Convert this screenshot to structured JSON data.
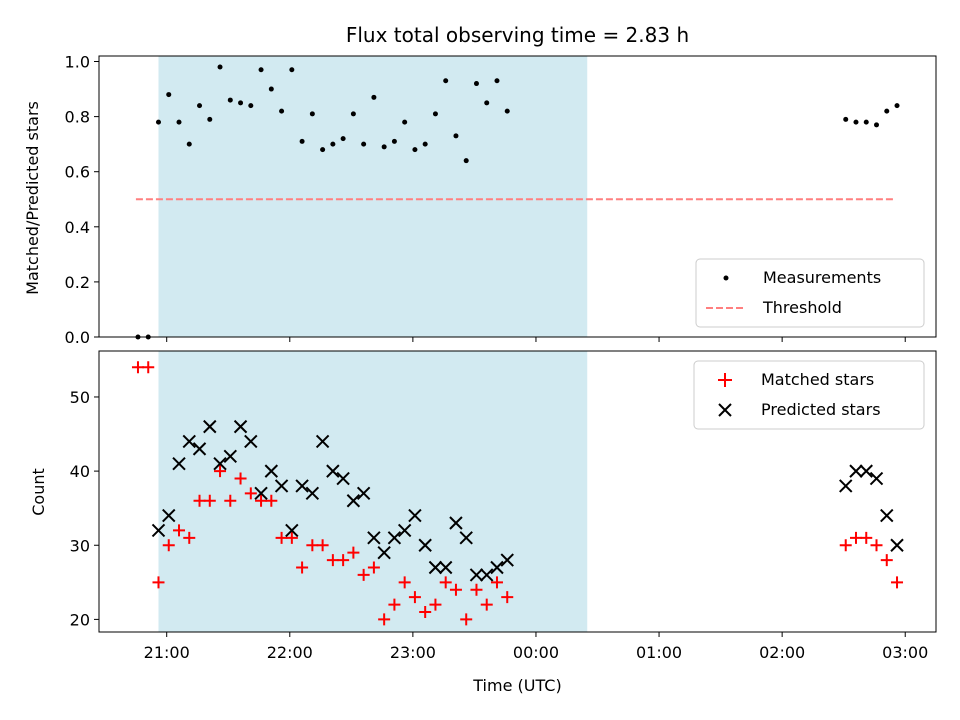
{
  "chart_data": [
    {
      "type": "scatter",
      "title": "Flux total observing time = 2.83 h",
      "xlabel": "",
      "ylabel": "Matched/Predicted stars",
      "xlim": [
        "20:27",
        "03:15"
      ],
      "ylim": [
        0.0,
        1.02
      ],
      "xticks": [
        "21:00",
        "22:00",
        "23:00",
        "00:00",
        "01:00",
        "02:00",
        "03:00"
      ],
      "yticks": [
        "0.0",
        "0.2",
        "0.4",
        "0.6",
        "0.8",
        "1.0"
      ],
      "shaded_interval": [
        "20:56",
        "00:25"
      ],
      "legend": {
        "position": "lower-right",
        "items": [
          "Measurements",
          "Threshold"
        ]
      },
      "threshold": {
        "name": "Threshold",
        "y": 0.5,
        "x_start": "20:45",
        "x_end": "02:55",
        "color": "#ff7f7f"
      },
      "series": [
        {
          "name": "Measurements",
          "color": "#000000",
          "points": [
            [
              "20:46",
              0.0
            ],
            [
              "20:51",
              0.0
            ],
            [
              "20:56",
              0.78
            ],
            [
              "21:01",
              0.88
            ],
            [
              "21:06",
              0.78
            ],
            [
              "21:11",
              0.7
            ],
            [
              "21:16",
              0.84
            ],
            [
              "21:21",
              0.79
            ],
            [
              "21:26",
              0.98
            ],
            [
              "21:31",
              0.86
            ],
            [
              "21:36",
              0.85
            ],
            [
              "21:41",
              0.84
            ],
            [
              "21:46",
              0.97
            ],
            [
              "21:51",
              0.9
            ],
            [
              "21:56",
              0.82
            ],
            [
              "22:01",
              0.97
            ],
            [
              "22:06",
              0.71
            ],
            [
              "22:11",
              0.81
            ],
            [
              "22:16",
              0.68
            ],
            [
              "22:21",
              0.7
            ],
            [
              "22:26",
              0.72
            ],
            [
              "22:31",
              0.81
            ],
            [
              "22:36",
              0.7
            ],
            [
              "22:41",
              0.87
            ],
            [
              "22:46",
              0.69
            ],
            [
              "22:51",
              0.71
            ],
            [
              "22:56",
              0.78
            ],
            [
              "23:01",
              0.68
            ],
            [
              "23:06",
              0.7
            ],
            [
              "23:11",
              0.81
            ],
            [
              "23:16",
              0.93
            ],
            [
              "23:21",
              0.73
            ],
            [
              "23:26",
              0.64
            ],
            [
              "23:31",
              0.92
            ],
            [
              "23:36",
              0.85
            ],
            [
              "23:41",
              0.93
            ],
            [
              "23:46",
              0.82
            ],
            [
              "02:31",
              0.79
            ],
            [
              "02:36",
              0.78
            ],
            [
              "02:41",
              0.78
            ],
            [
              "02:46",
              0.77
            ],
            [
              "02:51",
              0.82
            ],
            [
              "02:56",
              0.84
            ]
          ]
        }
      ]
    },
    {
      "type": "scatter",
      "title": "",
      "xlabel": "Time (UTC)",
      "ylabel": "Count",
      "xlim": [
        "20:27",
        "03:15"
      ],
      "ylim": [
        18.3,
        56.2
      ],
      "xticks": [
        "21:00",
        "22:00",
        "23:00",
        "00:00",
        "01:00",
        "02:00",
        "03:00"
      ],
      "yticks": [
        "20",
        "30",
        "40",
        "50"
      ],
      "shaded_interval": [
        "20:56",
        "00:25"
      ],
      "legend": {
        "position": "upper-right",
        "items": [
          "Matched stars",
          "Predicted stars"
        ]
      },
      "series": [
        {
          "name": "Matched stars",
          "color": "#ff0000",
          "marker": "plus",
          "points": [
            [
              "20:46",
              54
            ],
            [
              "20:51",
              54
            ],
            [
              "20:56",
              25
            ],
            [
              "21:01",
              30
            ],
            [
              "21:06",
              32
            ],
            [
              "21:11",
              31
            ],
            [
              "21:16",
              36
            ],
            [
              "21:21",
              36
            ],
            [
              "21:26",
              40
            ],
            [
              "21:31",
              36
            ],
            [
              "21:36",
              39
            ],
            [
              "21:41",
              37
            ],
            [
              "21:46",
              36
            ],
            [
              "21:51",
              36
            ],
            [
              "21:56",
              31
            ],
            [
              "22:01",
              31
            ],
            [
              "22:06",
              27
            ],
            [
              "22:11",
              30
            ],
            [
              "22:16",
              30
            ],
            [
              "22:21",
              28
            ],
            [
              "22:26",
              28
            ],
            [
              "22:31",
              29
            ],
            [
              "22:36",
              26
            ],
            [
              "22:41",
              27
            ],
            [
              "22:46",
              20
            ],
            [
              "22:51",
              22
            ],
            [
              "22:56",
              25
            ],
            [
              "23:01",
              23
            ],
            [
              "23:06",
              21
            ],
            [
              "23:11",
              22
            ],
            [
              "23:16",
              25
            ],
            [
              "23:21",
              24
            ],
            [
              "23:26",
              20
            ],
            [
              "23:31",
              24
            ],
            [
              "23:36",
              22
            ],
            [
              "23:41",
              25
            ],
            [
              "23:46",
              23
            ],
            [
              "02:31",
              30
            ],
            [
              "02:36",
              31
            ],
            [
              "02:41",
              31
            ],
            [
              "02:46",
              30
            ],
            [
              "02:51",
              28
            ],
            [
              "02:56",
              25
            ]
          ]
        },
        {
          "name": "Predicted stars",
          "color": "#000000",
          "marker": "x",
          "points": [
            [
              "20:56",
              32
            ],
            [
              "21:01",
              34
            ],
            [
              "21:06",
              41
            ],
            [
              "21:11",
              44
            ],
            [
              "21:16",
              43
            ],
            [
              "21:21",
              46
            ],
            [
              "21:26",
              41
            ],
            [
              "21:31",
              42
            ],
            [
              "21:36",
              46
            ],
            [
              "21:41",
              44
            ],
            [
              "21:46",
              37
            ],
            [
              "21:51",
              40
            ],
            [
              "21:56",
              38
            ],
            [
              "22:01",
              32
            ],
            [
              "22:06",
              38
            ],
            [
              "22:11",
              37
            ],
            [
              "22:16",
              44
            ],
            [
              "22:21",
              40
            ],
            [
              "22:26",
              39
            ],
            [
              "22:31",
              36
            ],
            [
              "22:36",
              37
            ],
            [
              "22:41",
              31
            ],
            [
              "22:46",
              29
            ],
            [
              "22:51",
              31
            ],
            [
              "22:56",
              32
            ],
            [
              "23:01",
              34
            ],
            [
              "23:06",
              30
            ],
            [
              "23:11",
              27
            ],
            [
              "23:16",
              27
            ],
            [
              "23:21",
              33
            ],
            [
              "23:26",
              31
            ],
            [
              "23:31",
              26
            ],
            [
              "23:36",
              26
            ],
            [
              "23:41",
              27
            ],
            [
              "23:46",
              28
            ],
            [
              "02:31",
              38
            ],
            [
              "02:36",
              40
            ],
            [
              "02:41",
              40
            ],
            [
              "02:46",
              39
            ],
            [
              "02:51",
              34
            ],
            [
              "02:56",
              30
            ]
          ]
        }
      ]
    }
  ],
  "colors": {
    "shade": "#add8e6",
    "threshold": "#ff7f7f",
    "matched": "#ff0000",
    "predicted": "#000000",
    "measurements": "#000000"
  }
}
